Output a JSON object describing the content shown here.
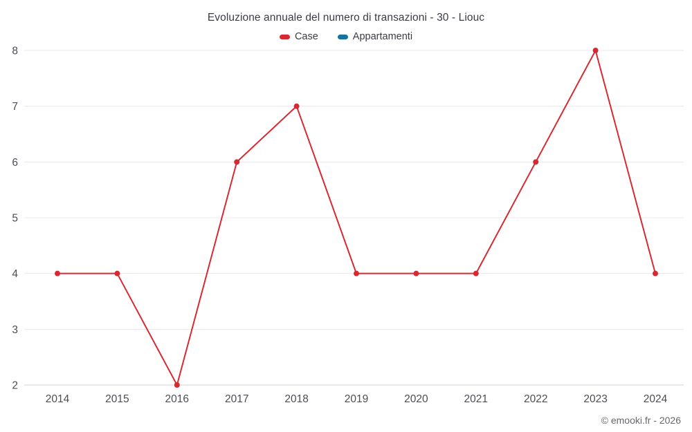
{
  "chart": {
    "title": "Evoluzione annuale del numero di transazioni - 30 - Liouc"
  },
  "footer": {
    "credit": "© emooki.fr - 2026"
  },
  "chart_data": {
    "type": "line",
    "title": "Evoluzione annuale del numero di transazioni - 30 - Liouc",
    "x": [
      "2014",
      "2015",
      "2016",
      "2017",
      "2018",
      "2019",
      "2020",
      "2021",
      "2022",
      "2023",
      "2024"
    ],
    "series": [
      {
        "name": "Case",
        "color": "#d62a32",
        "values": [
          4,
          4,
          2,
          6,
          7,
          4,
          4,
          4,
          6,
          8,
          4
        ]
      },
      {
        "name": "Appartamenti",
        "color": "#16739c",
        "values": []
      }
    ],
    "ylim": [
      2,
      8
    ],
    "yticks": [
      2,
      3,
      4,
      5,
      6,
      7,
      8
    ],
    "grid": true,
    "grid_color": "#e8e8ec",
    "axis_line_color": "#ccd1d7",
    "tick_label_color": "#4c4c56",
    "legend_position": "top",
    "marker": "circle",
    "marker_radius": 4
  }
}
